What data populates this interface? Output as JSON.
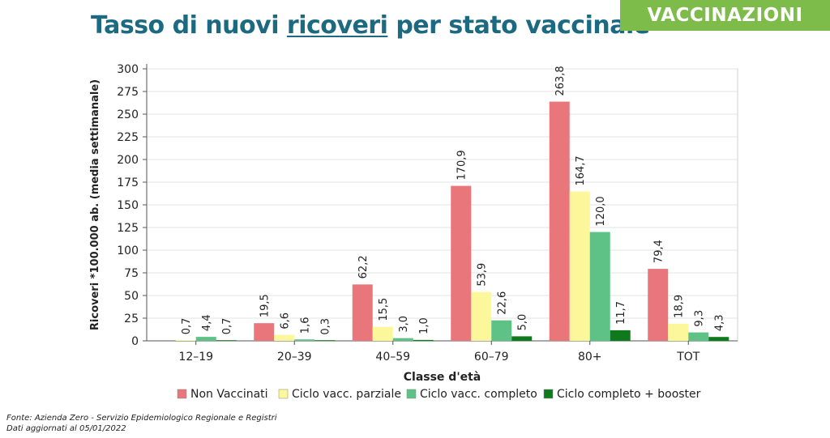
{
  "header": {
    "title_part1": "Tasso di nuovi ",
    "title_underlined": "ricoveri",
    "title_part2": " per stato vaccinale",
    "badge": "VACCINAZIONI"
  },
  "colors": {
    "title": "#1c6a82",
    "badge_bg": "#7dbb4a",
    "non_vaccinati": "#e8767a",
    "ciclo_parziale": "#fbf79a",
    "ciclo_completo": "#5ec287",
    "ciclo_booster": "#0f7a1c"
  },
  "chart_data": {
    "type": "bar",
    "xlabel": "Classe d'età",
    "ylabel": "Ricoveri *100.000 ab. (media settimanale)",
    "ylim": [
      0,
      300
    ],
    "yticks": [
      0,
      25,
      50,
      75,
      100,
      125,
      150,
      175,
      200,
      225,
      250,
      275,
      300
    ],
    "grid": true,
    "legend_position": "bottom",
    "categories": [
      "12–19",
      "20–39",
      "40–59",
      "60–79",
      "80+",
      "TOT"
    ],
    "series": [
      {
        "name": "Non Vaccinati",
        "color": "#e8767a",
        "values": [
          null,
          19.5,
          62.2,
          170.9,
          263.8,
          79.4
        ],
        "labels": [
          "",
          "19,5",
          "62,2",
          "170,9",
          "263,8",
          "79,4"
        ]
      },
      {
        "name": "Ciclo vacc. parziale",
        "color": "#fbf79a",
        "values": [
          0.7,
          6.6,
          15.5,
          53.9,
          164.7,
          18.9
        ],
        "labels": [
          "0,7",
          "6,6",
          "15,5",
          "53,9",
          "164,7",
          "18,9"
        ]
      },
      {
        "name": "Ciclo vacc. completo",
        "color": "#5ec287",
        "values": [
          4.4,
          1.6,
          3.0,
          22.6,
          120.0,
          9.3
        ],
        "labels": [
          "4,4",
          "1,6",
          "3,0",
          "22,6",
          "120,0",
          "9,3"
        ]
      },
      {
        "name": "Ciclo completo + booster",
        "color": "#0f7a1c",
        "values": [
          0.7,
          0.3,
          1.0,
          5.0,
          11.7,
          4.3
        ],
        "labels": [
          "0,7",
          "0,3",
          "1,0",
          "5,0",
          "11,7",
          "4,3"
        ]
      }
    ]
  },
  "footer": {
    "source": "Fonte: Azienda Zero - Servizio Epidemiologico Regionale e Registri",
    "updated": "Dati aggiornati al 05/01/2022"
  }
}
